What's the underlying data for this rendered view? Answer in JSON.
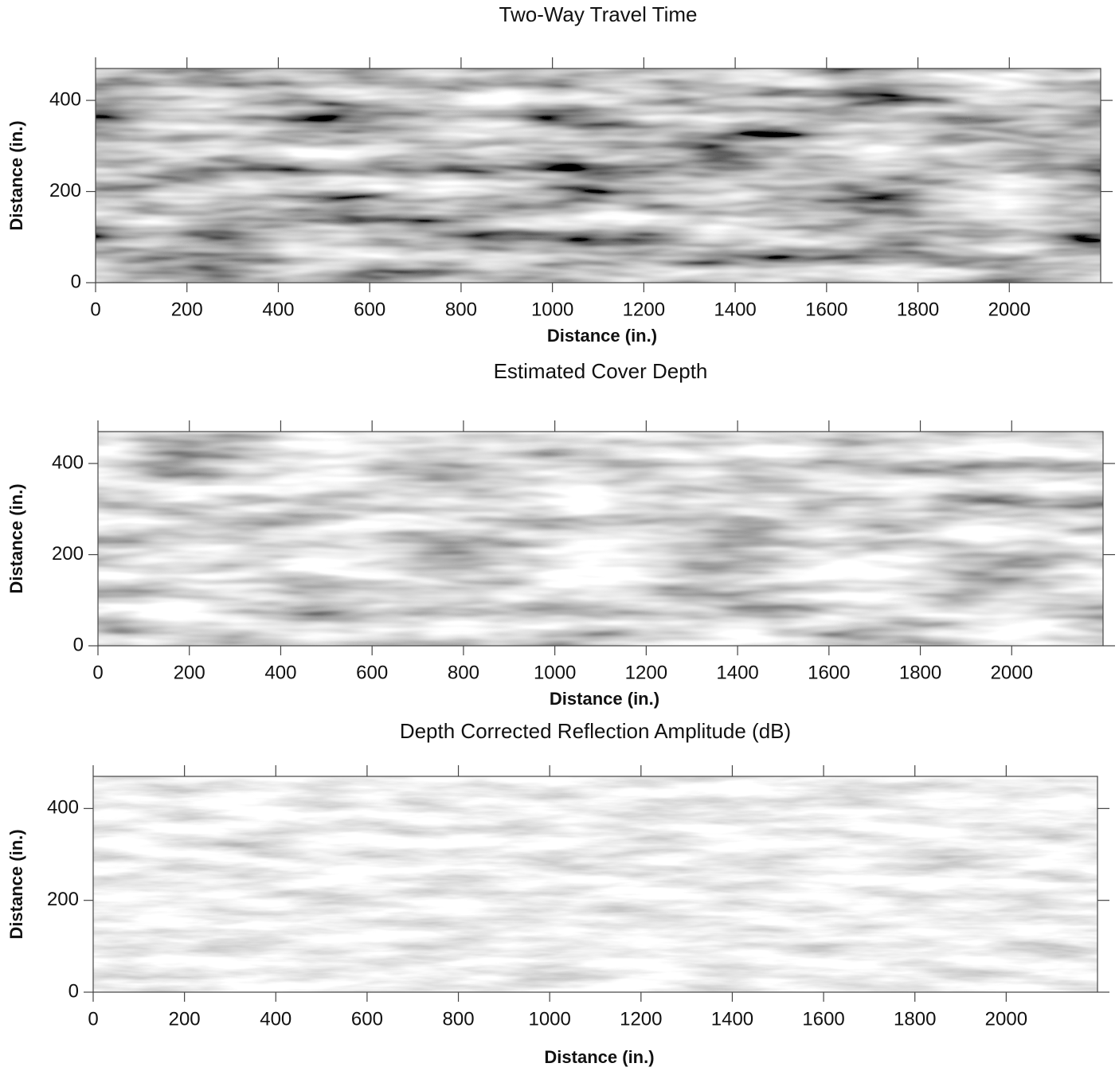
{
  "chart_data": [
    {
      "type": "heatmap",
      "title": "Two-Way Travel Time",
      "xlabel": "Distance (in.)",
      "ylabel": "Distance (in.)",
      "xlim": [
        0,
        2200
      ],
      "xticks": [
        0,
        200,
        400,
        600,
        800,
        1000,
        1200,
        1400,
        1600,
        1800,
        2000
      ],
      "ylim": [
        0,
        470
      ],
      "yticks": [
        0,
        200,
        400
      ]
    },
    {
      "type": "heatmap",
      "title": "Estimated Cover Depth",
      "xlabel": "Distance (in.)",
      "ylabel": "Distance (in.)",
      "xlim": [
        0,
        2200
      ],
      "xticks": [
        0,
        200,
        400,
        600,
        800,
        1000,
        1200,
        1400,
        1600,
        1800,
        2000
      ],
      "ylim": [
        0,
        470
      ],
      "yticks": [
        0,
        200,
        400
      ]
    },
    {
      "type": "heatmap",
      "title": "Depth Corrected Reflection Amplitude (dB)",
      "xlabel": "Distance (in.)",
      "ylabel": "Distance (in.)",
      "xlim": [
        0,
        2200
      ],
      "xticks": [
        0,
        200,
        400,
        600,
        800,
        1000,
        1200,
        1400,
        1600,
        1800,
        2000
      ],
      "ylim": [
        0,
        470
      ],
      "yticks": [
        0,
        200,
        400
      ]
    }
  ]
}
